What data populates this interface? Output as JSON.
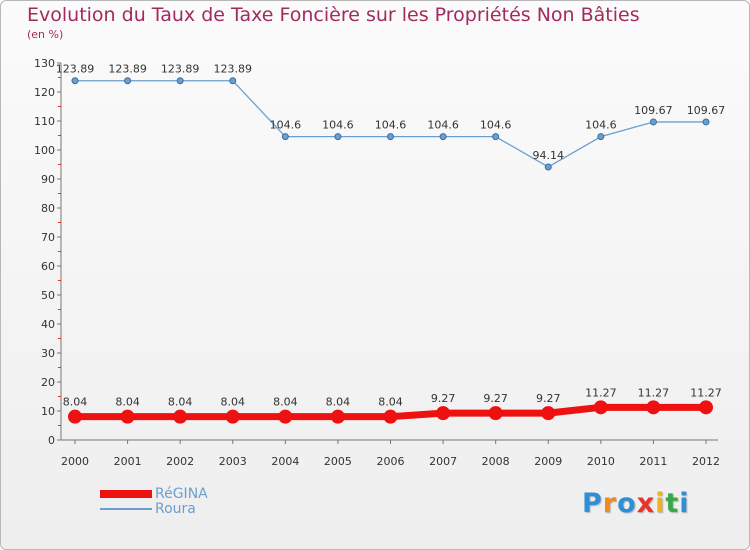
{
  "chart_data": {
    "type": "line",
    "title": "Evolution du Taux de Taxe Foncière sur les Propriétés Non Bâties",
    "ylabel": "(en %)",
    "xlabel": "",
    "ylim": [
      0,
      130
    ],
    "yticks": [
      0,
      10,
      20,
      30,
      40,
      50,
      60,
      70,
      80,
      90,
      100,
      110,
      120,
      130
    ],
    "categories": [
      "2000",
      "2001",
      "2002",
      "2003",
      "2004",
      "2005",
      "2006",
      "2007",
      "2008",
      "2009",
      "2010",
      "2011",
      "2012"
    ],
    "grid": false,
    "legend_position": "bottom-left",
    "series": [
      {
        "name": "RéGINA",
        "color": "#ee1111",
        "values": [
          8.04,
          8.04,
          8.04,
          8.04,
          8.04,
          8.04,
          8.04,
          9.27,
          9.27,
          9.27,
          11.27,
          11.27,
          11.27
        ],
        "labels": [
          "8.04",
          "8.04",
          "8.04",
          "8.04",
          "8.04",
          "8.04",
          "8.04",
          "9.27",
          "9.27",
          "9.27",
          "11.27",
          "11.27",
          "11.27"
        ]
      },
      {
        "name": "Roura",
        "color": "#6b9fd0",
        "values": [
          123.89,
          123.89,
          123.89,
          123.89,
          104.6,
          104.6,
          104.6,
          104.6,
          104.6,
          94.14,
          104.6,
          109.67,
          109.67
        ],
        "labels": [
          "123.89",
          "123.89",
          "123.89",
          "123.89",
          "104.6",
          "104.6",
          "104.6",
          "104.6",
          "104.6",
          "94.14",
          "104.6",
          "109.67",
          "109.67"
        ]
      }
    ]
  },
  "logo": {
    "letters": [
      "P",
      "r",
      "o",
      "x",
      "i",
      "t",
      "i"
    ],
    "colors": [
      "#2e8fd6",
      "#f08a1c",
      "#2e8fd6",
      "#e8332a",
      "#f0b21c",
      "#3aa84a",
      "#2e8fd6"
    ]
  }
}
